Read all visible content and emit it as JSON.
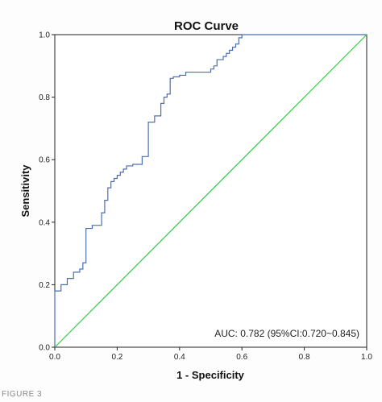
{
  "chart_data": {
    "type": "line",
    "title": "ROC Curve",
    "xlabel": "1 - Specificity",
    "ylabel": "Sensitivity",
    "xlim": [
      0.0,
      1.0
    ],
    "ylim": [
      0.0,
      1.0
    ],
    "x_ticks": [
      "0.0",
      "0.2",
      "0.4",
      "0.6",
      "0.8",
      "1.0"
    ],
    "y_ticks": [
      "0.0",
      "0.2",
      "0.4",
      "0.6",
      "0.8",
      "1.0"
    ],
    "grid": false,
    "annotation": "AUC: 0.782 (95%CI:0.720~0.845)",
    "series": [
      {
        "color": "#4a6fb5",
        "x": [
          0.0,
          0.0,
          0.02,
          0.02,
          0.04,
          0.04,
          0.06,
          0.06,
          0.08,
          0.08,
          0.09,
          0.09,
          0.1,
          0.1,
          0.12,
          0.12,
          0.15,
          0.15,
          0.16,
          0.16,
          0.17,
          0.17,
          0.18,
          0.18,
          0.19,
          0.19,
          0.2,
          0.2,
          0.21,
          0.21,
          0.22,
          0.22,
          0.23,
          0.23,
          0.25,
          0.25,
          0.28,
          0.28,
          0.3,
          0.3,
          0.32,
          0.32,
          0.34,
          0.34,
          0.35,
          0.35,
          0.36,
          0.36,
          0.37,
          0.37,
          0.38,
          0.38,
          0.4,
          0.4,
          0.42,
          0.42,
          0.5,
          0.5,
          0.51,
          0.51,
          0.52,
          0.52,
          0.54,
          0.54,
          0.55,
          0.55,
          0.56,
          0.56,
          0.57,
          0.57,
          0.58,
          0.58,
          0.59,
          0.59,
          0.6,
          0.6,
          1.0
        ],
        "y": [
          0.0,
          0.18,
          0.18,
          0.2,
          0.2,
          0.22,
          0.22,
          0.24,
          0.24,
          0.25,
          0.25,
          0.27,
          0.27,
          0.38,
          0.38,
          0.39,
          0.39,
          0.43,
          0.43,
          0.47,
          0.47,
          0.51,
          0.51,
          0.53,
          0.53,
          0.54,
          0.54,
          0.55,
          0.55,
          0.56,
          0.56,
          0.57,
          0.57,
          0.58,
          0.58,
          0.585,
          0.585,
          0.61,
          0.61,
          0.72,
          0.72,
          0.74,
          0.74,
          0.78,
          0.78,
          0.8,
          0.8,
          0.81,
          0.81,
          0.86,
          0.86,
          0.865,
          0.865,
          0.87,
          0.87,
          0.88,
          0.88,
          0.89,
          0.89,
          0.9,
          0.9,
          0.92,
          0.92,
          0.93,
          0.93,
          0.94,
          0.94,
          0.95,
          0.95,
          0.96,
          0.96,
          0.97,
          0.97,
          0.99,
          0.99,
          1.0,
          1.0
        ]
      },
      {
        "color": "#2ecc40",
        "x": [
          0.0,
          1.0
        ],
        "y": [
          0.0,
          1.0
        ]
      }
    ]
  },
  "caption": "FIGURE 3"
}
